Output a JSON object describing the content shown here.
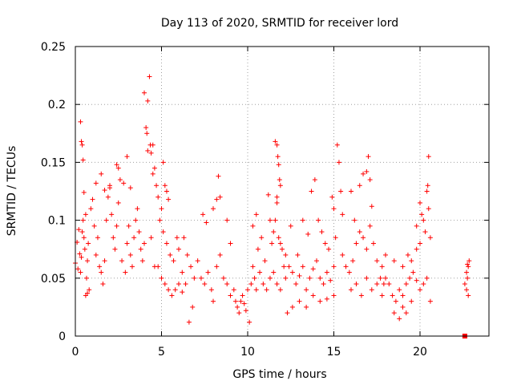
{
  "chart_data": {
    "type": "scatter",
    "title": "Day 113 of 2020, SRMTID for receiver lord",
    "xlabel": "GPS time / hours",
    "ylabel": "SRMTID / TECUs",
    "xlim": [
      0,
      24
    ],
    "ylim": [
      0,
      0.25
    ],
    "xticks": [
      0,
      5,
      10,
      15,
      20
    ],
    "xtick_labels": [
      "0",
      "5",
      "10",
      "15",
      "20"
    ],
    "yticks": [
      0,
      0.05,
      0.1,
      0.15,
      0.2,
      0.25
    ],
    "ytick_labels": [
      "0",
      "0.05",
      "0.1",
      "0.15",
      "0.2",
      "0.25"
    ],
    "grid": true,
    "marker": "+",
    "color": "#ff0000",
    "series": [
      {
        "name": "SRMTID",
        "points": [
          [
            0.0,
            0.063
          ],
          [
            0.1,
            0.081
          ],
          [
            0.15,
            0.058
          ],
          [
            0.2,
            0.092
          ],
          [
            0.25,
            0.071
          ],
          [
            0.3,
            0.055
          ],
          [
            0.35,
            0.068
          ],
          [
            0.4,
            0.09
          ],
          [
            0.45,
            0.1
          ],
          [
            0.5,
            0.085
          ],
          [
            0.55,
            0.075
          ],
          [
            0.6,
            0.105
          ],
          [
            0.65,
            0.05
          ],
          [
            0.7,
            0.065
          ],
          [
            0.75,
            0.08
          ],
          [
            0.3,
            0.185
          ],
          [
            0.35,
            0.168
          ],
          [
            0.4,
            0.165
          ],
          [
            0.45,
            0.152
          ],
          [
            0.5,
            0.124
          ],
          [
            0.6,
            0.035
          ],
          [
            0.7,
            0.037
          ],
          [
            0.8,
            0.04
          ],
          [
            0.9,
            0.11
          ],
          [
            1.0,
            0.118
          ],
          [
            1.1,
            0.095
          ],
          [
            1.2,
            0.07
          ],
          [
            1.3,
            0.085
          ],
          [
            1.4,
            0.06
          ],
          [
            1.5,
            0.055
          ],
          [
            1.6,
            0.045
          ],
          [
            1.7,
            0.065
          ],
          [
            1.8,
            0.1
          ],
          [
            1.9,
            0.12
          ],
          [
            2.0,
            0.13
          ],
          [
            2.1,
            0.105
          ],
          [
            2.2,
            0.085
          ],
          [
            2.3,
            0.075
          ],
          [
            2.4,
            0.095
          ],
          [
            2.5,
            0.115
          ],
          [
            1.2,
            0.132
          ],
          [
            1.5,
            0.14
          ],
          [
            1.7,
            0.126
          ],
          [
            2.0,
            0.128
          ],
          [
            2.4,
            0.148
          ],
          [
            2.5,
            0.145
          ],
          [
            2.6,
            0.135
          ],
          [
            2.8,
            0.132
          ],
          [
            3.0,
            0.155
          ],
          [
            3.2,
            0.128
          ],
          [
            2.7,
            0.065
          ],
          [
            2.9,
            0.055
          ],
          [
            3.0,
            0.08
          ],
          [
            3.1,
            0.095
          ],
          [
            3.2,
            0.07
          ],
          [
            3.3,
            0.06
          ],
          [
            3.4,
            0.085
          ],
          [
            3.5,
            0.1
          ],
          [
            3.6,
            0.11
          ],
          [
            3.7,
            0.09
          ],
          [
            3.8,
            0.075
          ],
          [
            3.9,
            0.065
          ],
          [
            4.0,
            0.08
          ],
          [
            4.0,
            0.21
          ],
          [
            4.1,
            0.18
          ],
          [
            4.15,
            0.175
          ],
          [
            4.2,
            0.203
          ],
          [
            4.3,
            0.224
          ],
          [
            4.35,
            0.165
          ],
          [
            4.4,
            0.158
          ],
          [
            4.5,
            0.165
          ],
          [
            4.6,
            0.145
          ],
          [
            4.7,
            0.13
          ],
          [
            4.8,
            0.12
          ],
          [
            4.5,
            0.14
          ],
          [
            4.2,
            0.16
          ],
          [
            4.9,
            0.1
          ],
          [
            5.0,
            0.11
          ],
          [
            5.1,
            0.15
          ],
          [
            5.2,
            0.13
          ],
          [
            5.3,
            0.125
          ],
          [
            5.4,
            0.118
          ],
          [
            5.1,
            0.09
          ],
          [
            5.3,
            0.08
          ],
          [
            5.5,
            0.07
          ],
          [
            5.7,
            0.065
          ],
          [
            5.9,
            0.085
          ],
          [
            6.0,
            0.075
          ],
          [
            6.2,
            0.055
          ],
          [
            4.4,
            0.085
          ],
          [
            4.6,
            0.06
          ],
          [
            4.8,
            0.06
          ],
          [
            5.0,
            0.05
          ],
          [
            5.2,
            0.045
          ],
          [
            5.4,
            0.04
          ],
          [
            5.6,
            0.035
          ],
          [
            5.8,
            0.04
          ],
          [
            6.0,
            0.045
          ],
          [
            6.2,
            0.038
          ],
          [
            6.4,
            0.045
          ],
          [
            6.6,
            0.012
          ],
          [
            6.8,
            0.025
          ],
          [
            6.3,
            0.085
          ],
          [
            6.5,
            0.07
          ],
          [
            6.7,
            0.06
          ],
          [
            6.9,
            0.05
          ],
          [
            7.1,
            0.065
          ],
          [
            7.3,
            0.05
          ],
          [
            7.5,
            0.045
          ],
          [
            7.7,
            0.055
          ],
          [
            7.9,
            0.04
          ],
          [
            8.0,
            0.03
          ],
          [
            8.2,
            0.06
          ],
          [
            8.4,
            0.07
          ],
          [
            8.6,
            0.05
          ],
          [
            8.8,
            0.045
          ],
          [
            9.0,
            0.035
          ],
          [
            7.4,
            0.105
          ],
          [
            7.6,
            0.098
          ],
          [
            8.0,
            0.11
          ],
          [
            8.2,
            0.118
          ],
          [
            8.3,
            0.138
          ],
          [
            8.4,
            0.12
          ],
          [
            8.8,
            0.1
          ],
          [
            9.0,
            0.08
          ],
          [
            9.2,
            0.04
          ],
          [
            9.3,
            0.03
          ],
          [
            9.4,
            0.025
          ],
          [
            9.5,
            0.02
          ],
          [
            9.6,
            0.03
          ],
          [
            9.7,
            0.035
          ],
          [
            9.8,
            0.028
          ],
          [
            9.9,
            0.022
          ],
          [
            10.0,
            0.04
          ],
          [
            10.1,
            0.012
          ],
          [
            10.2,
            0.045
          ],
          [
            10.3,
            0.06
          ],
          [
            10.4,
            0.05
          ],
          [
            10.3,
            0.095
          ],
          [
            10.5,
            0.105
          ],
          [
            10.6,
            0.075
          ],
          [
            10.8,
            0.085
          ],
          [
            11.0,
            0.065
          ],
          [
            11.2,
            0.122
          ],
          [
            11.3,
            0.1
          ],
          [
            11.4,
            0.08
          ],
          [
            11.5,
            0.09
          ],
          [
            11.6,
            0.1
          ],
          [
            11.7,
            0.115
          ],
          [
            11.8,
            0.085
          ],
          [
            11.9,
            0.08
          ],
          [
            12.0,
            0.075
          ],
          [
            12.1,
            0.06
          ],
          [
            12.2,
            0.07
          ],
          [
            11.6,
            0.168
          ],
          [
            11.7,
            0.165
          ],
          [
            11.75,
            0.155
          ],
          [
            11.8,
            0.148
          ],
          [
            11.85,
            0.135
          ],
          [
            11.9,
            0.13
          ],
          [
            11.7,
            0.12
          ],
          [
            10.5,
            0.04
          ],
          [
            10.7,
            0.055
          ],
          [
            10.9,
            0.045
          ],
          [
            11.1,
            0.04
          ],
          [
            11.3,
            0.05
          ],
          [
            11.5,
            0.055
          ],
          [
            11.7,
            0.045
          ],
          [
            11.9,
            0.04
          ],
          [
            12.2,
            0.05
          ],
          [
            12.4,
            0.06
          ],
          [
            12.6,
            0.055
          ],
          [
            12.8,
            0.045
          ],
          [
            13.0,
            0.052
          ],
          [
            13.2,
            0.06
          ],
          [
            13.4,
            0.04
          ],
          [
            13.6,
            0.05
          ],
          [
            13.8,
            0.058
          ],
          [
            14.0,
            0.065
          ],
          [
            14.2,
            0.05
          ],
          [
            14.4,
            0.045
          ],
          [
            14.6,
            0.055
          ],
          [
            14.8,
            0.048
          ],
          [
            15.0,
            0.06
          ],
          [
            12.5,
            0.095
          ],
          [
            12.9,
            0.07
          ],
          [
            13.2,
            0.1
          ],
          [
            13.5,
            0.088
          ],
          [
            13.7,
            0.125
          ],
          [
            13.9,
            0.135
          ],
          [
            14.1,
            0.1
          ],
          [
            14.3,
            0.09
          ],
          [
            14.5,
            0.08
          ],
          [
            14.7,
            0.075
          ],
          [
            14.9,
            0.12
          ],
          [
            15.0,
            0.11
          ],
          [
            15.1,
            0.085
          ],
          [
            15.2,
            0.165
          ],
          [
            15.3,
            0.15
          ],
          [
            15.4,
            0.125
          ],
          [
            15.5,
            0.105
          ],
          [
            12.3,
            0.02
          ],
          [
            12.6,
            0.025
          ],
          [
            13.0,
            0.03
          ],
          [
            13.4,
            0.025
          ],
          [
            13.8,
            0.035
          ],
          [
            14.2,
            0.03
          ],
          [
            14.6,
            0.032
          ],
          [
            15.0,
            0.035
          ],
          [
            15.5,
            0.07
          ],
          [
            15.7,
            0.06
          ],
          [
            15.9,
            0.055
          ],
          [
            16.1,
            0.065
          ],
          [
            16.3,
            0.08
          ],
          [
            16.5,
            0.09
          ],
          [
            16.7,
            0.085
          ],
          [
            16.9,
            0.075
          ],
          [
            17.1,
            0.095
          ],
          [
            17.3,
            0.08
          ],
          [
            17.5,
            0.065
          ],
          [
            17.7,
            0.05
          ],
          [
            17.9,
            0.045
          ],
          [
            16.0,
            0.125
          ],
          [
            16.2,
            0.1
          ],
          [
            16.5,
            0.13
          ],
          [
            16.7,
            0.14
          ],
          [
            16.9,
            0.142
          ],
          [
            17.0,
            0.155
          ],
          [
            17.1,
            0.135
          ],
          [
            17.2,
            0.112
          ],
          [
            16.0,
            0.04
          ],
          [
            16.3,
            0.045
          ],
          [
            16.6,
            0.035
          ],
          [
            16.9,
            0.05
          ],
          [
            17.2,
            0.04
          ],
          [
            17.5,
            0.045
          ],
          [
            17.8,
            0.035
          ],
          [
            17.8,
            0.06
          ],
          [
            18.0,
            0.05
          ],
          [
            18.2,
            0.045
          ],
          [
            18.4,
            0.035
          ],
          [
            18.6,
            0.03
          ],
          [
            18.8,
            0.04
          ],
          [
            19.0,
            0.035
          ],
          [
            19.2,
            0.045
          ],
          [
            19.4,
            0.05
          ],
          [
            19.6,
            0.055
          ],
          [
            19.8,
            0.048
          ],
          [
            20.0,
            0.04
          ],
          [
            20.2,
            0.045
          ],
          [
            20.4,
            0.05
          ],
          [
            20.6,
            0.03
          ],
          [
            18.0,
            0.07
          ],
          [
            18.5,
            0.065
          ],
          [
            19.0,
            0.06
          ],
          [
            19.3,
            0.07
          ],
          [
            19.5,
            0.065
          ],
          [
            19.8,
            0.075
          ],
          [
            20.0,
            0.08
          ],
          [
            18.5,
            0.02
          ],
          [
            18.8,
            0.015
          ],
          [
            19.0,
            0.025
          ],
          [
            19.2,
            0.02
          ],
          [
            19.5,
            0.03
          ],
          [
            19.8,
            0.095
          ],
          [
            20.0,
            0.115
          ],
          [
            20.1,
            0.105
          ],
          [
            20.2,
            0.1
          ],
          [
            20.3,
            0.09
          ],
          [
            20.4,
            0.125
          ],
          [
            20.5,
            0.155
          ],
          [
            20.45,
            0.13
          ],
          [
            20.5,
            0.11
          ],
          [
            20.6,
            0.085
          ],
          [
            22.6,
            0.045
          ],
          [
            22.7,
            0.055
          ],
          [
            22.75,
            0.05
          ],
          [
            22.8,
            0.06
          ],
          [
            22.85,
            0.065
          ],
          [
            22.7,
            0.04
          ],
          [
            22.8,
            0.035
          ],
          [
            22.75,
            0.062
          ]
        ]
      }
    ],
    "outlier_marker": {
      "x": 22.6,
      "y": 0.0,
      "shape": "square"
    }
  }
}
